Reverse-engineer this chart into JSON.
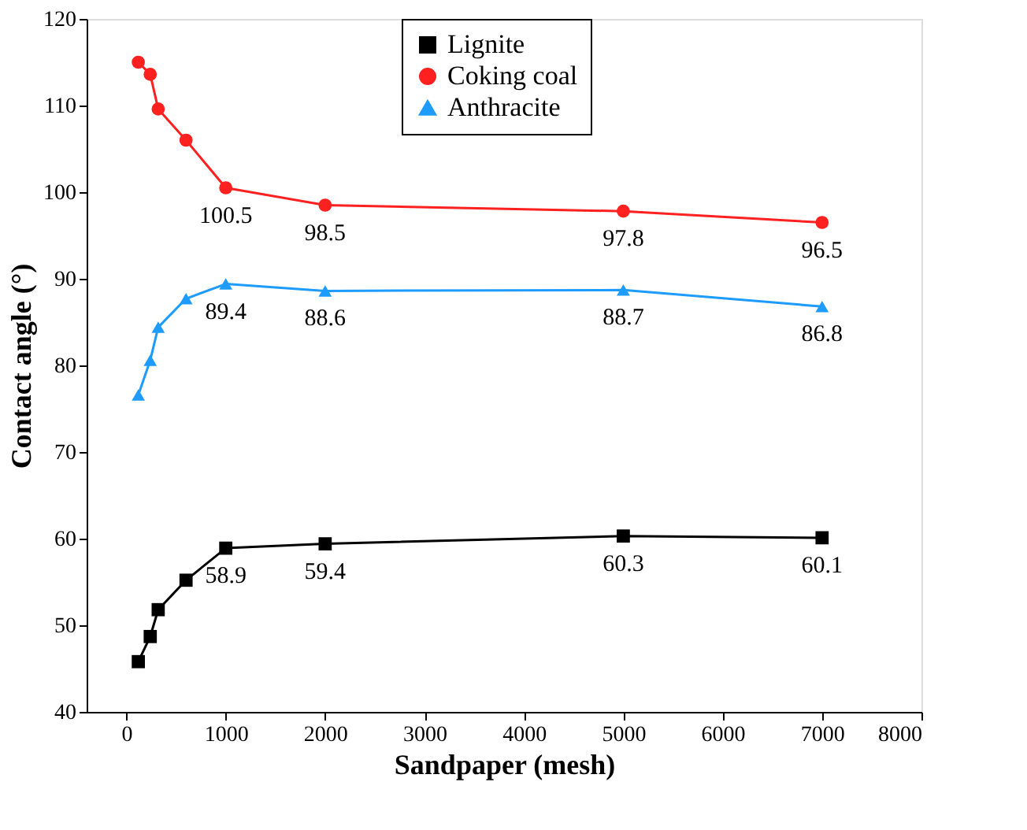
{
  "chart_data": {
    "type": "line",
    "xlabel": "Sandpaper (mesh)",
    "ylabel": "Contact angle (°)",
    "x": [
      120,
      240,
      320,
      600,
      1000,
      2000,
      5000,
      7000
    ],
    "xlim": [
      -400,
      8000
    ],
    "xticks": [
      0,
      1000,
      2000,
      3000,
      4000,
      5000,
      6000,
      7000,
      8000
    ],
    "ylim": [
      40,
      120
    ],
    "yticks": [
      40,
      50,
      60,
      70,
      80,
      90,
      100,
      110,
      120
    ],
    "legend": "top",
    "grid": false,
    "line_style": "solid",
    "series": [
      {
        "name": "Lignite",
        "color": "#000000",
        "marker": "square",
        "values": [
          45.8,
          48.7,
          51.8,
          55.2,
          58.9,
          59.4,
          60.3,
          60.1
        ],
        "value_labels": [
          null,
          null,
          null,
          null,
          "58.9",
          "59.4",
          "60.3",
          "60.1"
        ]
      },
      {
        "name": "Coking coal",
        "color": "#ff2020",
        "marker": "circle",
        "values": [
          115.0,
          113.6,
          109.6,
          106.0,
          100.5,
          98.5,
          97.8,
          96.5
        ],
        "value_labels": [
          null,
          null,
          null,
          null,
          "100.5",
          "98.5",
          "97.8",
          "96.5"
        ]
      },
      {
        "name": "Anthracite",
        "color": "#1e9bff",
        "marker": "triangle",
        "values": [
          76.6,
          80.6,
          84.4,
          87.7,
          89.4,
          88.6,
          88.7,
          86.8
        ],
        "value_labels": [
          null,
          null,
          null,
          null,
          "89.4",
          "88.6",
          "88.7",
          "86.8"
        ]
      }
    ]
  }
}
